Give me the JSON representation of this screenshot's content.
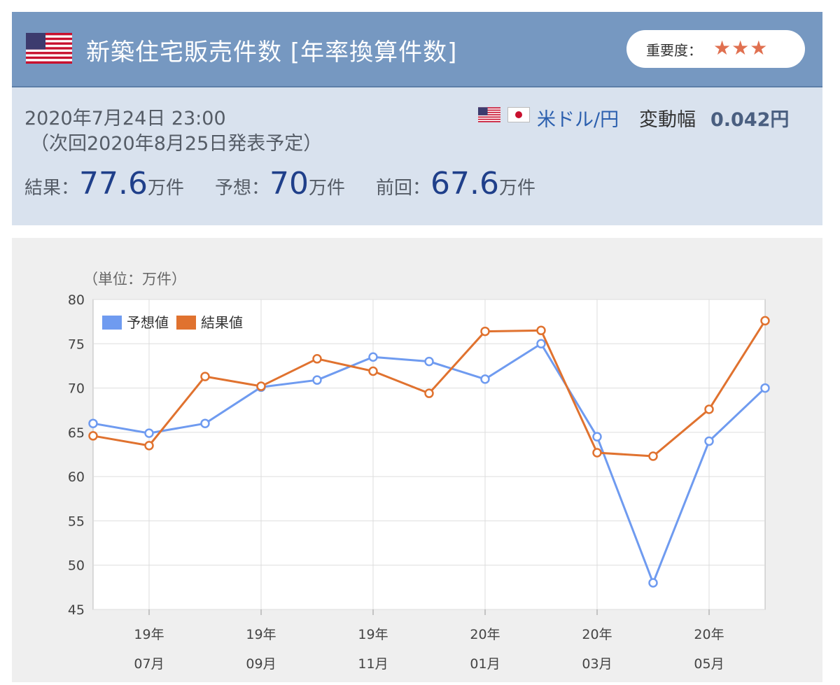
{
  "header": {
    "title": "新築住宅販売件数 [年率換算件数]",
    "importance_label": "重要度：",
    "importance_stars": "★★★",
    "accent_color": "#7698c1"
  },
  "info": {
    "datetime": "2020年7月24日 23:00",
    "next_release": "（次回2020年8月25日発表予定）",
    "pair": "米ドル/円",
    "volatility_label": "変動幅",
    "volatility_value": "0.042円",
    "result_label": "結果：",
    "result_value": "77.6",
    "result_unit": "万件",
    "forecast_label": "予想：",
    "forecast_value": "70",
    "forecast_unit": "万件",
    "previous_label": "前回：",
    "previous_value": "67.6",
    "previous_unit": "万件"
  },
  "chart_data": {
    "type": "line",
    "unit_label": "（単位：万件）",
    "ylim": [
      45,
      80
    ],
    "yticks": [
      45,
      50,
      55,
      60,
      65,
      70,
      75,
      80
    ],
    "grid": true,
    "legend_placement": "top-left",
    "x_count": 13,
    "xtick_labels": [
      {
        "index": 1,
        "top": "19年",
        "bottom": "07月"
      },
      {
        "index": 3,
        "top": "19年",
        "bottom": "09月"
      },
      {
        "index": 5,
        "top": "19年",
        "bottom": "11月"
      },
      {
        "index": 7,
        "top": "20年",
        "bottom": "01月"
      },
      {
        "index": 9,
        "top": "20年",
        "bottom": "03月"
      },
      {
        "index": 11,
        "top": "20年",
        "bottom": "05月"
      }
    ],
    "series": [
      {
        "name": "予想値",
        "color": "#6f9bf0",
        "values": [
          66.0,
          64.9,
          66.0,
          70.1,
          70.9,
          73.5,
          73.0,
          71.0,
          75.0,
          64.5,
          48.0,
          64.0,
          70.0
        ]
      },
      {
        "name": "結果値",
        "color": "#e0722f",
        "values": [
          64.6,
          63.5,
          71.3,
          70.2,
          73.3,
          71.9,
          69.4,
          76.4,
          76.5,
          62.7,
          62.3,
          67.6,
          77.6
        ]
      }
    ]
  }
}
